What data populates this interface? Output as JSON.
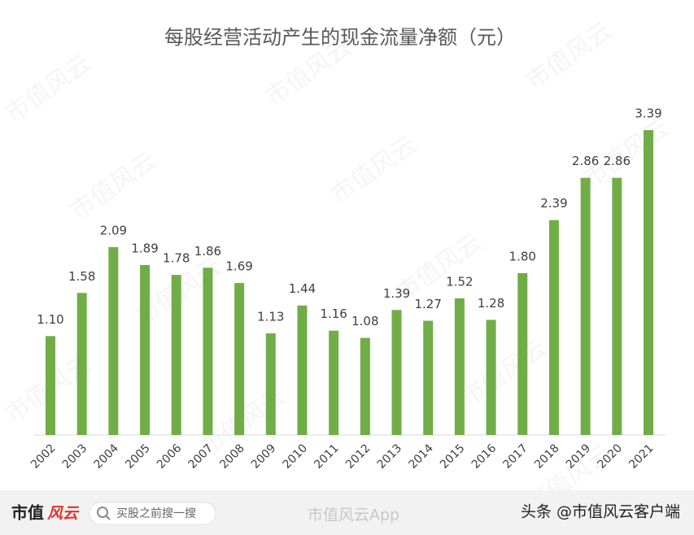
{
  "chart_data": {
    "type": "bar",
    "title": "每股经营活动产生的现金流量净额（元）",
    "categories": [
      "2002",
      "2003",
      "2004",
      "2005",
      "2006",
      "2007",
      "2008",
      "2009",
      "2010",
      "2011",
      "2012",
      "2013",
      "2014",
      "2015",
      "2016",
      "2017",
      "2018",
      "2019",
      "2020",
      "2021"
    ],
    "values": [
      1.1,
      1.58,
      2.09,
      1.89,
      1.78,
      1.86,
      1.69,
      1.13,
      1.44,
      1.16,
      1.08,
      1.39,
      1.27,
      1.52,
      1.28,
      1.8,
      2.39,
      2.86,
      2.86,
      3.39
    ],
    "value_labels": [
      "1.10",
      "1.58",
      "2.09",
      "1.89",
      "1.78",
      "1.86",
      "1.69",
      "1.13",
      "1.44",
      "1.16",
      "1.08",
      "1.39",
      "1.27",
      "1.52",
      "1.28",
      "1.80",
      "2.39",
      "2.86",
      "2.86",
      "3.39"
    ],
    "color": "#70ad47"
  },
  "watermark": "市值风云",
  "footer": {
    "logo_main": "市值",
    "logo_accent": "风云",
    "search": "买股之前搜一搜",
    "app": "市值风云App",
    "source": "头条 @市值风云客户端"
  }
}
